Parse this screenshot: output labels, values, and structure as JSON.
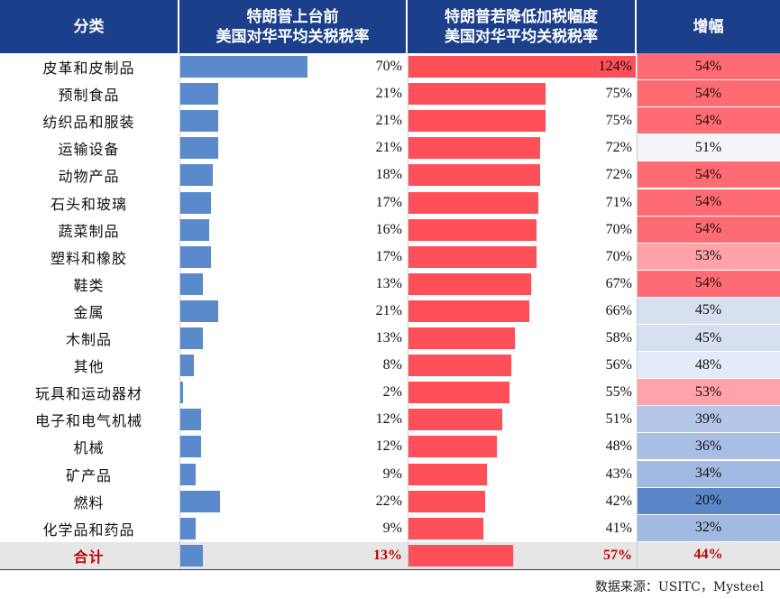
{
  "header": {
    "col_category": "分类",
    "col_before": "特朗普上台前\n美国对华平均关税税率",
    "col_after": "特朗普若降低加税幅度\n美国对华平均关税税率",
    "col_increase": "增幅"
  },
  "chart_data": {
    "type": "table",
    "categories": [
      "皮革和皮制品",
      "预制食品",
      "纺织品和服装",
      "运输设备",
      "动物产品",
      "石头和玻璃",
      "蔬菜制品",
      "塑料和橡胶",
      "鞋类",
      "金属",
      "木制品",
      "其他",
      "玩具和运动器材",
      "电子和电气机械",
      "机械",
      "矿产品",
      "燃料",
      "化学品和药品"
    ],
    "series": [
      {
        "values": [
          70,
          21,
          21,
          21,
          18,
          17,
          16,
          17,
          13,
          21,
          13,
          8,
          2,
          12,
          12,
          9,
          22,
          9
        ]
      },
      {
        "values": [
          124,
          75,
          75,
          72,
          72,
          71,
          70,
          70,
          67,
          66,
          58,
          56,
          55,
          51,
          48,
          43,
          42,
          41
        ]
      },
      {
        "values": [
          54,
          54,
          54,
          51,
          54,
          54,
          54,
          53,
          54,
          45,
          45,
          48,
          53,
          39,
          36,
          34,
          20,
          32
        ]
      }
    ],
    "value_suffix": "%",
    "total": {
      "label": "合计",
      "before": 13,
      "after": 57,
      "increase": 44
    },
    "bar_max": 124
  },
  "colors": {
    "header_bg": "#1b3f8b",
    "bar_before": "#5b8acc",
    "bar_after": "#ff4f59"
  },
  "footer": {
    "source": "数据来源：USITC，Mysteel"
  }
}
